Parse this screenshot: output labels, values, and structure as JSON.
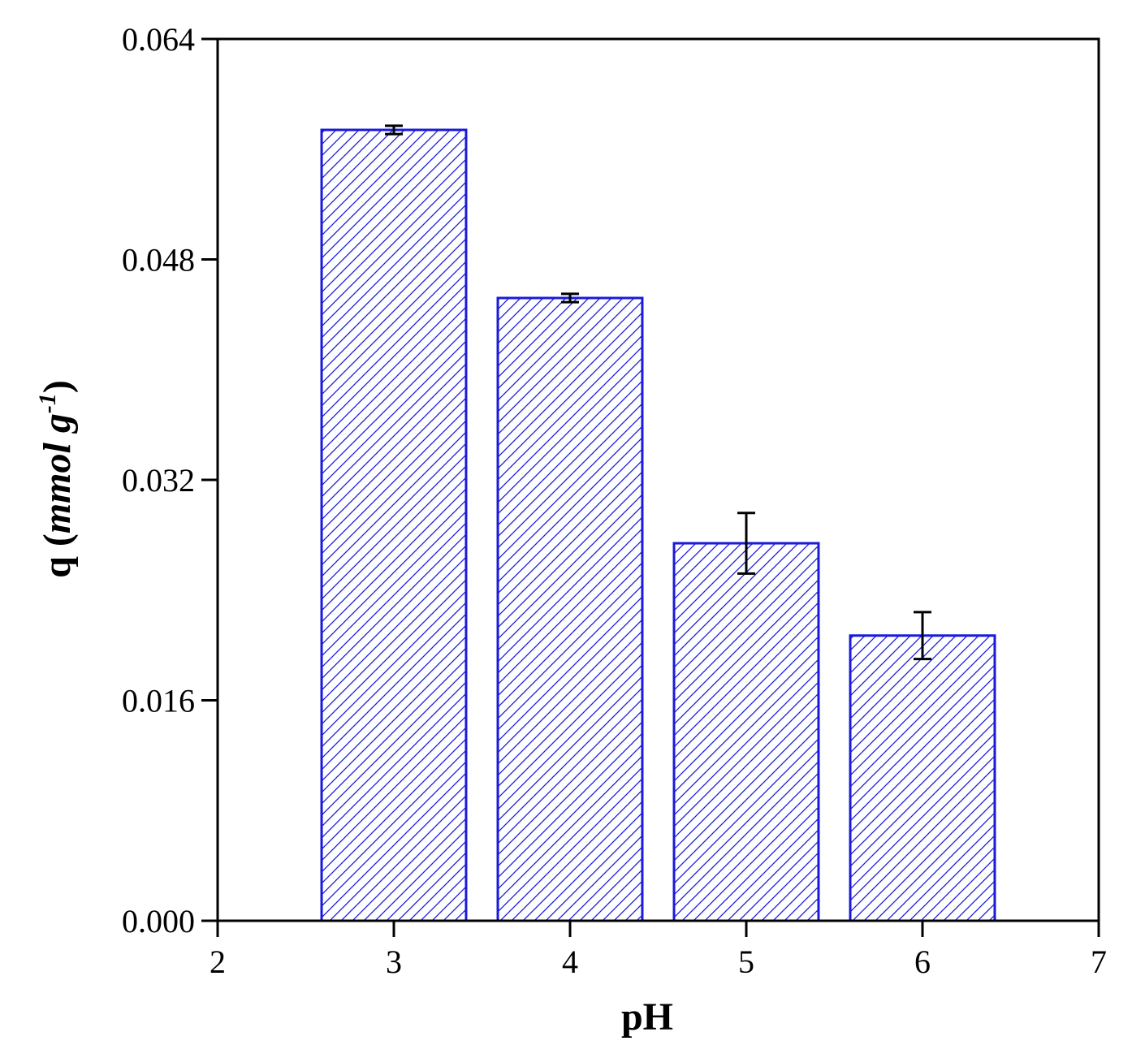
{
  "chart_data": {
    "type": "bar",
    "x": [
      3,
      4,
      5,
      6
    ],
    "values": [
      0.0574,
      0.0452,
      0.0274,
      0.0207
    ],
    "errors": [
      0.0003,
      0.0003,
      0.0022,
      0.0017
    ],
    "xlabel": "pH",
    "ylabel_main": "q (",
    "ylabel_unit": "mmol g",
    "ylabel_exp": "-1",
    "ylabel_close": ")",
    "xlim": [
      2,
      7
    ],
    "ylim": [
      0,
      0.064
    ],
    "xticks": [
      2,
      3,
      4,
      5,
      6,
      7
    ],
    "xtick_labels": [
      "2",
      "3",
      "4",
      "5",
      "6",
      "7"
    ],
    "yticks": [
      0,
      0.016,
      0.032,
      0.048,
      0.064
    ],
    "ytick_labels": [
      "0.000",
      "0.016",
      "0.032",
      "0.048",
      "0.064"
    ],
    "bar_width": 0.82,
    "bar_color": "#1a1adb",
    "hatch": "diagonal",
    "grid": false,
    "legend": "none"
  }
}
